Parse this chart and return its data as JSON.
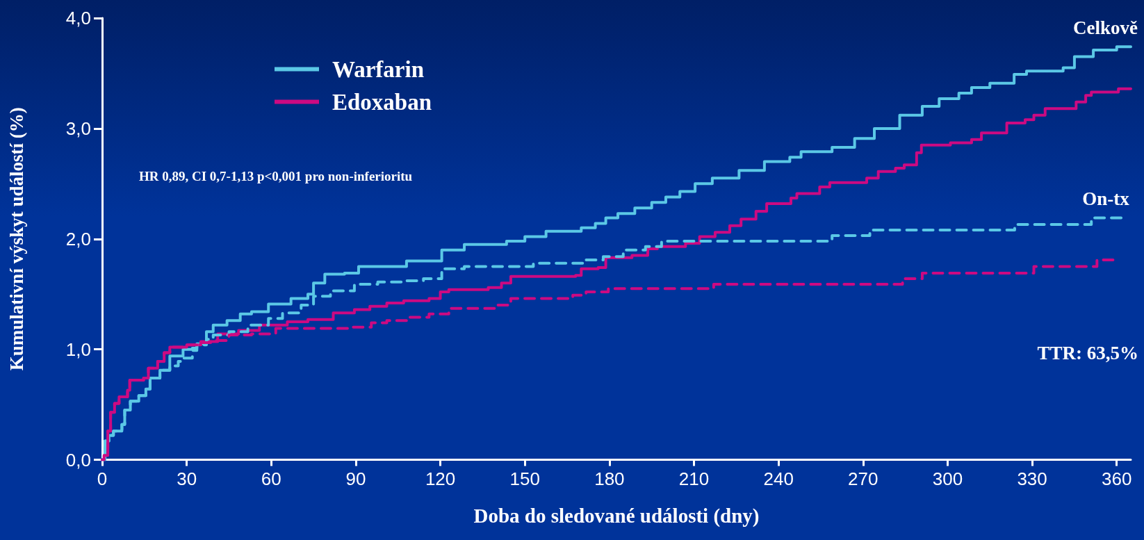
{
  "chart_data": {
    "type": "step",
    "xlabel": "Doba do sledované události (dny)",
    "ylabel": "Kumulativní výskyt událostí (%)",
    "xlim": [
      0,
      365
    ],
    "xticks": [
      0,
      30,
      60,
      90,
      120,
      150,
      180,
      210,
      240,
      270,
      300,
      330,
      360
    ],
    "ylim": [
      0,
      4
    ],
    "yticks": [
      {
        "value": 0,
        "label": "0,0"
      },
      {
        "value": 1,
        "label": "1,0"
      },
      {
        "value": 2,
        "label": "2,0"
      },
      {
        "value": 3,
        "label": "3,0"
      },
      {
        "value": 4,
        "label": "4,0"
      }
    ],
    "grid": false,
    "legend": "top left",
    "marker": "none",
    "annotations": [
      "HR 0,89, CI 0,7-1,13 p<0,001 pro non-inferioritu",
      "TTR: 63,5%",
      {
        "text": "Celkově",
        "x": 365,
        "y": 3.74
      },
      {
        "text": "On-tx",
        "x": 362,
        "y": 2.19
      }
    ],
    "series": [
      {
        "name": "Warfarin",
        "color": "#5bc8e6",
        "line_style": "solid",
        "x": [
          0,
          1,
          2.4,
          4,
          7,
          8,
          10,
          13,
          15.5,
          17,
          20.5,
          24,
          28.7,
          32,
          33.6,
          37,
          39.4,
          44.3,
          49,
          53,
          59,
          67,
          73,
          75,
          79,
          86,
          91,
          108,
          120.5,
          128.5,
          143.5,
          150,
          157.5,
          170,
          175,
          178.7,
          183,
          189,
          195,
          200,
          205,
          210.4,
          216.5,
          226,
          235,
          244,
          248,
          259,
          267,
          274,
          283,
          291,
          297,
          304,
          308.5,
          315,
          323.6,
          328,
          341,
          345,
          351.7,
          360,
          365
        ],
        "values": [
          0,
          0.17,
          0.22,
          0.26,
          0.32,
          0.45,
          0.53,
          0.58,
          0.64,
          0.74,
          0.81,
          0.94,
          1.0,
          1.01,
          1.05,
          1.16,
          1.22,
          1.26,
          1.32,
          1.34,
          1.41,
          1.46,
          1.5,
          1.6,
          1.68,
          1.69,
          1.75,
          1.8,
          1.9,
          1.95,
          1.98,
          2.02,
          2.07,
          2.1,
          2.14,
          2.19,
          2.23,
          2.28,
          2.33,
          2.38,
          2.43,
          2.5,
          2.55,
          2.62,
          2.7,
          2.74,
          2.79,
          2.83,
          2.91,
          3.0,
          3.12,
          3.2,
          3.27,
          3.32,
          3.37,
          3.41,
          3.49,
          3.52,
          3.55,
          3.65,
          3.71,
          3.74,
          3.74
        ]
      },
      {
        "name": "Edoxaban",
        "color": "#cc0a82",
        "line_style": "solid",
        "x": [
          0,
          0.7,
          2,
          3,
          4.4,
          6,
          9,
          9.8,
          14.7,
          16.4,
          19.7,
          22,
          24,
          30,
          35,
          41,
          48.4,
          55.8,
          65.7,
          73,
          82,
          89.5,
          95,
          101,
          107,
          116,
          120,
          123,
          137,
          141.7,
          145,
          168,
          170,
          176,
          178.7,
          188,
          193.6,
          197,
          207,
          212,
          217.5,
          222.7,
          226.7,
          232,
          235.8,
          244.4,
          246.5,
          254.6,
          258.2,
          271.3,
          275.4,
          281.5,
          284.6,
          289,
          290.7,
          301,
          308.5,
          312,
          321,
          327.5,
          330.6,
          334.6,
          345.6,
          349,
          351,
          360.6,
          365
        ],
        "values": [
          0,
          0.04,
          0.26,
          0.43,
          0.51,
          0.57,
          0.63,
          0.72,
          0.74,
          0.83,
          0.89,
          0.97,
          1.02,
          1.04,
          1.07,
          1.14,
          1.17,
          1.22,
          1.25,
          1.27,
          1.33,
          1.36,
          1.39,
          1.42,
          1.44,
          1.46,
          1.52,
          1.54,
          1.56,
          1.6,
          1.66,
          1.67,
          1.73,
          1.74,
          1.83,
          1.85,
          1.91,
          1.93,
          1.96,
          2.02,
          2.06,
          2.12,
          2.18,
          2.25,
          2.32,
          2.37,
          2.41,
          2.47,
          2.51,
          2.55,
          2.61,
          2.64,
          2.67,
          2.78,
          2.85,
          2.87,
          2.9,
          2.96,
          3.05,
          3.08,
          3.12,
          3.18,
          3.24,
          3.3,
          3.33,
          3.36,
          3.36
        ]
      },
      {
        "color": "#5bc8e6",
        "line_style": "dashed",
        "x": [
          0,
          1,
          2.4,
          4,
          7,
          8,
          10,
          13,
          15.5,
          17,
          20.5,
          24,
          27,
          28.4,
          32,
          33.6,
          37,
          39.4,
          45,
          51.7,
          59,
          64,
          70.6,
          75,
          81,
          89.5,
          97.8,
          107,
          114,
          120.5,
          121.4,
          128.5,
          153,
          170.8,
          177.8,
          184.9,
          192.8,
          198.5,
          259,
          272.4,
          323.8,
          351,
          362
        ],
        "values": [
          0,
          0.17,
          0.22,
          0.26,
          0.32,
          0.45,
          0.53,
          0.58,
          0.64,
          0.74,
          0.81,
          0.85,
          0.89,
          0.92,
          0.99,
          1.04,
          1.09,
          1.13,
          1.16,
          1.22,
          1.28,
          1.33,
          1.4,
          1.48,
          1.53,
          1.59,
          1.61,
          1.62,
          1.64,
          1.7,
          1.73,
          1.75,
          1.78,
          1.81,
          1.84,
          1.9,
          1.93,
          1.98,
          2.03,
          2.08,
          2.13,
          2.19,
          2.19
        ]
      },
      {
        "color": "#cc0a82",
        "line_style": "dashed",
        "x": [
          0,
          0.7,
          2,
          3,
          4.4,
          6,
          9,
          9.8,
          14.7,
          16.4,
          19.7,
          22,
          24,
          30,
          35,
          38.5,
          45,
          53,
          61.6,
          89,
          95.5,
          101,
          108,
          116,
          123,
          140,
          145,
          167,
          171.7,
          179.6,
          217,
          284,
          291,
          330.6,
          353,
          360
        ],
        "values": [
          0,
          0.04,
          0.26,
          0.43,
          0.51,
          0.57,
          0.63,
          0.72,
          0.74,
          0.83,
          0.89,
          0.97,
          1.02,
          1.04,
          1.06,
          1.08,
          1.13,
          1.14,
          1.19,
          1.2,
          1.24,
          1.26,
          1.29,
          1.32,
          1.37,
          1.4,
          1.46,
          1.49,
          1.52,
          1.55,
          1.59,
          1.64,
          1.69,
          1.75,
          1.81,
          1.81
        ]
      }
    ]
  }
}
